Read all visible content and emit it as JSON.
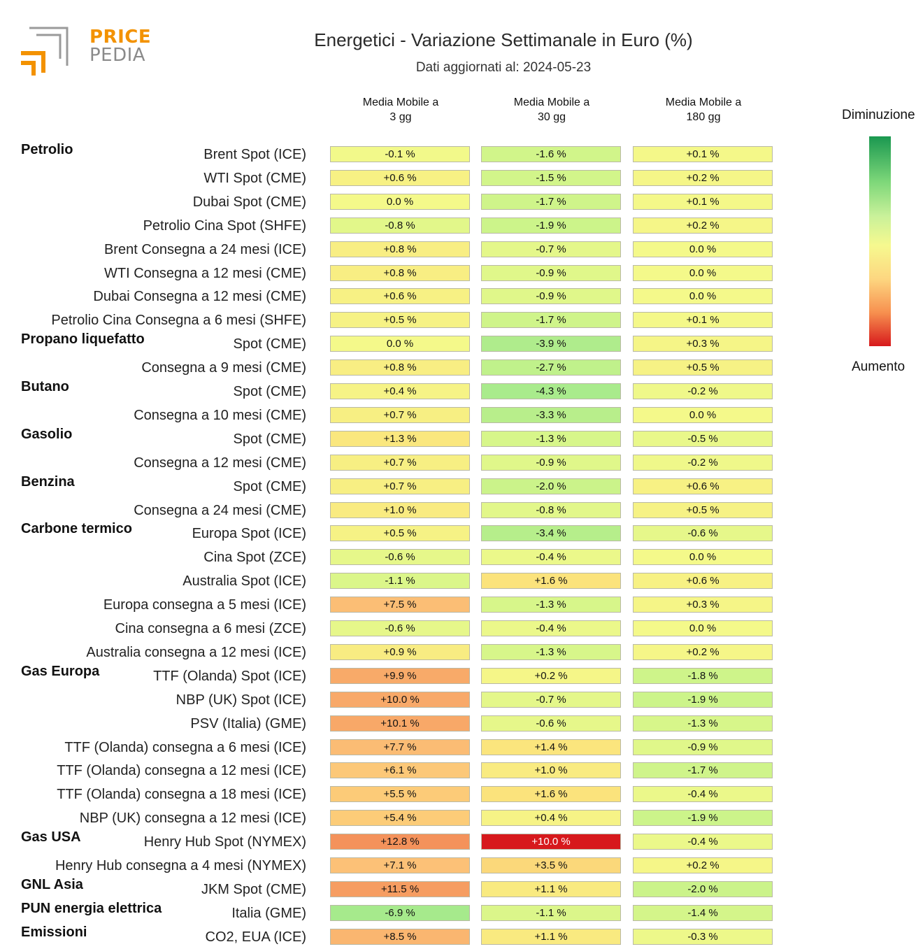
{
  "brand": {
    "line1": "PRICE",
    "line2": "PEDIA",
    "accent": "#f39200",
    "muted": "#8a8a8a"
  },
  "chart_data": {
    "type": "heatmap",
    "title": "Energetici - Variazione Settimanale in Euro (%)",
    "subtitle": "Dati aggiornati al: 2024-05-23",
    "columns": [
      "Media Mobile a\n3 gg",
      "Media Mobile a\n30 gg",
      "Media Mobile a\n180 gg"
    ],
    "legend": {
      "top": "Diminuzione",
      "bottom": "Aumento",
      "placement": "right"
    },
    "rows": [
      {
        "group": "Petrolio",
        "label": "Brent Spot (ICE)",
        "values": [
          -0.1,
          -1.6,
          0.1
        ]
      },
      {
        "group": "",
        "label": "WTI Spot (CME)",
        "values": [
          0.6,
          -1.5,
          0.2
        ]
      },
      {
        "group": "",
        "label": "Dubai Spot (CME)",
        "values": [
          0.0,
          -1.7,
          0.1
        ]
      },
      {
        "group": "",
        "label": "Petrolio Cina Spot (SHFE)",
        "values": [
          -0.8,
          -1.9,
          0.2
        ]
      },
      {
        "group": "",
        "label": "Brent Consegna a 24 mesi (ICE)",
        "values": [
          0.8,
          -0.7,
          0.0
        ]
      },
      {
        "group": "",
        "label": "WTI Consegna a 12 mesi (CME)",
        "values": [
          0.8,
          -0.9,
          0.0
        ]
      },
      {
        "group": "",
        "label": "Dubai Consegna a 12 mesi (CME)",
        "values": [
          0.6,
          -0.9,
          0.0
        ]
      },
      {
        "group": "",
        "label": "Petrolio Cina Consegna a 6 mesi (SHFE)",
        "values": [
          0.5,
          -1.7,
          0.1
        ]
      },
      {
        "group": "Propano liquefatto",
        "label": "Spot (CME)",
        "values": [
          0.0,
          -3.9,
          0.3
        ]
      },
      {
        "group": "",
        "label": "Consegna a 9 mesi (CME)",
        "values": [
          0.8,
          -2.7,
          0.5
        ]
      },
      {
        "group": "Butano",
        "label": "Spot (CME)",
        "values": [
          0.4,
          -4.3,
          -0.2
        ]
      },
      {
        "group": "",
        "label": "Consegna a 10 mesi (CME)",
        "values": [
          0.7,
          -3.3,
          0.0
        ]
      },
      {
        "group": "Gasolio",
        "label": "Spot (CME)",
        "values": [
          1.3,
          -1.3,
          -0.5
        ]
      },
      {
        "group": "",
        "label": "Consegna a 12 mesi (CME)",
        "values": [
          0.7,
          -0.9,
          -0.2
        ]
      },
      {
        "group": "Benzina",
        "label": "Spot (CME)",
        "values": [
          0.7,
          -2.0,
          0.6
        ]
      },
      {
        "group": "",
        "label": "Consegna a 24 mesi (CME)",
        "values": [
          1.0,
          -0.8,
          0.5
        ]
      },
      {
        "group": "Carbone termico",
        "label": "Europa Spot (ICE)",
        "values": [
          0.5,
          -3.4,
          -0.6
        ]
      },
      {
        "group": "",
        "label": "Cina Spot (ZCE)",
        "values": [
          -0.6,
          -0.4,
          0.0
        ]
      },
      {
        "group": "",
        "label": "Australia Spot (ICE)",
        "values": [
          -1.1,
          1.6,
          0.6
        ]
      },
      {
        "group": "",
        "label": "Europa consegna a 5 mesi (ICE)",
        "values": [
          7.5,
          -1.3,
          0.3
        ]
      },
      {
        "group": "",
        "label": "Cina consegna a 6 mesi (ZCE)",
        "values": [
          -0.6,
          -0.4,
          0.0
        ]
      },
      {
        "group": "",
        "label": "Australia consegna a 12 mesi (ICE)",
        "values": [
          0.9,
          -1.3,
          0.2
        ]
      },
      {
        "group": "Gas Europa",
        "label": "TTF (Olanda) Spot (ICE)",
        "values": [
          9.9,
          0.2,
          -1.8
        ]
      },
      {
        "group": "",
        "label": "NBP (UK) Spot (ICE)",
        "values": [
          10.0,
          -0.7,
          -1.9
        ]
      },
      {
        "group": "",
        "label": "PSV (Italia) (GME)",
        "values": [
          10.1,
          -0.6,
          -1.3
        ]
      },
      {
        "group": "",
        "label": "TTF (Olanda) consegna a 6 mesi (ICE)",
        "values": [
          7.7,
          1.4,
          -0.9
        ]
      },
      {
        "group": "",
        "label": "TTF (Olanda) consegna a 12 mesi (ICE)",
        "values": [
          6.1,
          1.0,
          -1.7
        ]
      },
      {
        "group": "",
        "label": "TTF (Olanda) consegna a 18 mesi (ICE)",
        "values": [
          5.5,
          1.6,
          -0.4
        ]
      },
      {
        "group": "",
        "label": "NBP (UK) consegna a 12 mesi (ICE)",
        "values": [
          5.4,
          0.4,
          -1.9
        ]
      },
      {
        "group": "Gas USA",
        "label": "Henry Hub Spot (NYMEX)",
        "values": [
          12.8,
          10.0,
          -0.4
        ]
      },
      {
        "group": "",
        "label": "Henry Hub consegna a 4 mesi (NYMEX)",
        "values": [
          7.1,
          3.5,
          0.2
        ]
      },
      {
        "group": "GNL Asia",
        "label": "JKM Spot (CME)",
        "values": [
          11.5,
          1.1,
          -2.0
        ]
      },
      {
        "group": "PUN energia elettrica",
        "label": "Italia (GME)",
        "values": [
          -6.9,
          -1.1,
          -1.4
        ]
      },
      {
        "group": "Emissioni",
        "label": "CO2, EUA (ICE)",
        "values": [
          8.5,
          1.1,
          -0.3
        ]
      }
    ],
    "highlight": {
      "row": "Henry Hub Spot (NYMEX)",
      "column": 1,
      "color": "#d7191c"
    }
  }
}
